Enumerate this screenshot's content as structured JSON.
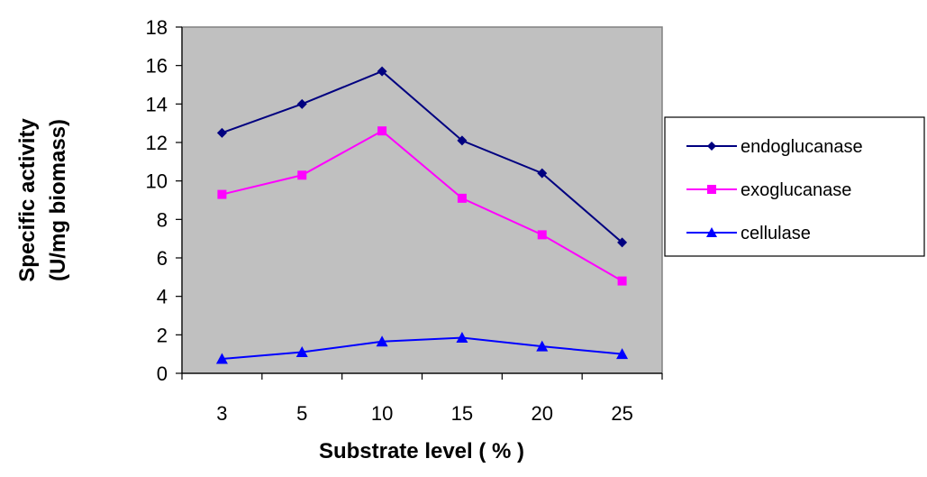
{
  "chart_data": {
    "type": "line",
    "title": "",
    "xlabel": "Substrate level ( % )",
    "ylabel_line1": "Specific activity",
    "ylabel_line2": "(U/mg biomass)",
    "categories": [
      "3",
      "5",
      "10",
      "15",
      "20",
      "25"
    ],
    "ylim": [
      0,
      18
    ],
    "ytick_step": 2,
    "yticks": [
      "0",
      "2",
      "4",
      "6",
      "8",
      "10",
      "12",
      "14",
      "16",
      "18"
    ],
    "grid": false,
    "plot_background": "#c0c0c0",
    "legend_position": "right",
    "series": [
      {
        "name": "endoglucanase",
        "values": [
          12.5,
          14.0,
          15.7,
          12.1,
          10.4,
          6.8
        ],
        "color": "#000080",
        "marker": "diamond"
      },
      {
        "name": "exoglucanase",
        "values": [
          9.3,
          10.3,
          12.6,
          9.1,
          7.2,
          4.8
        ],
        "color": "#ff00ff",
        "marker": "square"
      },
      {
        "name": "cellulase",
        "values": [
          0.75,
          1.1,
          1.65,
          1.85,
          1.4,
          1.0
        ],
        "color": "#0000ff",
        "marker": "triangle"
      }
    ]
  }
}
